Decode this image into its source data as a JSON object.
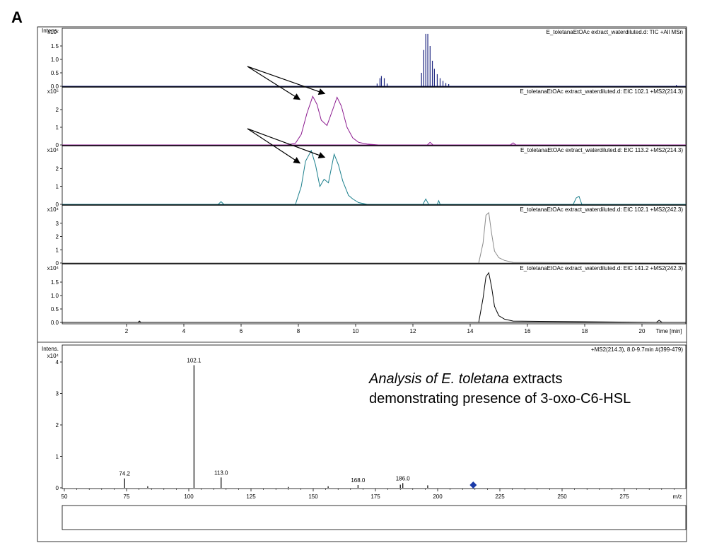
{
  "figure": {
    "panel_label": "A",
    "caption": {
      "species_italic": "Analysis of E. toletana",
      "text1": " extracts",
      "text2": "demonstrating presence of 3-oxo-C6-HSL"
    }
  },
  "colors": {
    "tic": "#1a237e",
    "eic1": "#8b1a8f",
    "eic2": "#1b7f8c",
    "eic3": "#8a8a8a",
    "eic4": "#000000",
    "ms": "#000000",
    "marker": "#1a3aa8"
  },
  "chart_data": [
    {
      "type": "line",
      "title": "E_toletanaEtOAc extract_waterdiluted.d: TIC +All MSn",
      "ylabel": "Intens.",
      "yexp": "x10⁷",
      "xlabel": "Time [min]",
      "xlim": [
        0,
        21.5
      ],
      "ylim": [
        0,
        2.0
      ],
      "yticks": [
        "0.0",
        "0.5",
        "1.0",
        "1.5"
      ],
      "xticks": [
        "2",
        "4",
        "6",
        "8",
        "10",
        "12",
        "14",
        "16",
        "18",
        "20"
      ],
      "series": [
        {
          "x": [
            10.75,
            10.85,
            10.9,
            11.0,
            11.1,
            12.3,
            12.38,
            12.45,
            12.52,
            12.6,
            12.68,
            12.75,
            12.85,
            12.95,
            13.05,
            13.15,
            13.25,
            21.2
          ],
          "y": [
            0.1,
            0.3,
            0.38,
            0.3,
            0.1,
            0.5,
            1.35,
            1.95,
            1.95,
            1.5,
            0.95,
            0.65,
            0.45,
            0.3,
            0.2,
            0.12,
            0.08,
            0.05
          ]
        }
      ]
    },
    {
      "type": "line",
      "title": "E_toletanaEtOAc extract_waterdiluted.d: EIC 102.1 +MS2(214.3)",
      "yexp": "x10⁵",
      "xlim": [
        0,
        21.5
      ],
      "ylim": [
        0,
        3.0
      ],
      "yticks": [
        "0",
        "1",
        "2"
      ],
      "series": [
        {
          "x": [
            0,
            7.6,
            7.9,
            8.1,
            8.3,
            8.5,
            8.65,
            8.8,
            9.0,
            9.2,
            9.35,
            9.5,
            9.7,
            9.9,
            10.1,
            10.4,
            10.8,
            12.5,
            12.6,
            12.7,
            13.5,
            15.4,
            15.5,
            15.6,
            21.5
          ],
          "y": [
            0,
            0,
            0.1,
            0.6,
            1.8,
            2.75,
            2.3,
            1.4,
            1.1,
            2.0,
            2.7,
            2.2,
            1.0,
            0.4,
            0.15,
            0.05,
            0,
            0,
            0.15,
            0,
            0,
            0,
            0.12,
            0,
            0
          ]
        }
      ]
    },
    {
      "type": "line",
      "title": "E_toletanaEtOAc extract_waterdiluted.d: EIC 113.2 +MS2(214.3)",
      "yexp": "x10⁴",
      "xlim": [
        0,
        21.5
      ],
      "ylim": [
        0,
        3.0
      ],
      "yticks": [
        "0",
        "1",
        "2"
      ],
      "series": [
        {
          "x": [
            0,
            5.2,
            5.3,
            5.4,
            7.9,
            8.1,
            8.25,
            8.45,
            8.6,
            8.75,
            8.9,
            9.05,
            9.25,
            9.4,
            9.55,
            9.75,
            9.9,
            10.1,
            10.4,
            12.35,
            12.45,
            12.55,
            12.85,
            12.9,
            12.95,
            17.6,
            17.7,
            17.8,
            17.9,
            21.5
          ],
          "y": [
            0,
            0,
            0.15,
            0,
            0,
            1.0,
            2.4,
            3.0,
            2.2,
            1.0,
            1.4,
            1.2,
            2.8,
            2.2,
            1.3,
            0.5,
            0.3,
            0.1,
            0,
            0,
            0.3,
            0,
            0,
            0.2,
            0,
            0,
            0.35,
            0.45,
            0,
            0
          ]
        }
      ]
    },
    {
      "type": "line",
      "title": "E_toletanaEtOAc extract_waterdiluted.d: EIC 102.1 +MS2(242.3)",
      "yexp": "x10⁴",
      "xlim": [
        0,
        21.5
      ],
      "ylim": [
        0,
        4.0
      ],
      "yticks": [
        "0",
        "1",
        "2",
        "3"
      ],
      "series": [
        {
          "x": [
            0,
            14.3,
            14.45,
            14.55,
            14.65,
            14.75,
            14.85,
            15.0,
            15.2,
            15.5,
            21.5
          ],
          "y": [
            0,
            0,
            1.5,
            3.6,
            3.8,
            2.2,
            0.9,
            0.4,
            0.2,
            0.05,
            0
          ]
        }
      ]
    },
    {
      "type": "line",
      "title": "E_toletanaEtOAc extract_waterdiluted.d: EIC 141.2 +MS2(242.3)",
      "yexp": "x10⁴",
      "xlim": [
        0,
        21.5
      ],
      "ylim": [
        0,
        2.0
      ],
      "yticks": [
        "0.0",
        "0.5",
        "1.0",
        "1.5"
      ],
      "series": [
        {
          "x": [
            0,
            2.4,
            2.45,
            2.5,
            14.3,
            14.45,
            14.55,
            14.65,
            14.75,
            14.85,
            15.0,
            15.2,
            15.5,
            20.5,
            20.6,
            20.7,
            21.5
          ],
          "y": [
            0,
            0,
            0.05,
            0,
            0,
            0.9,
            1.7,
            1.85,
            1.3,
            0.6,
            0.25,
            0.12,
            0.05,
            0,
            0.08,
            0,
            0
          ]
        }
      ]
    },
    {
      "type": "bar",
      "title": "+MS2(214.3), 8.0-9.7min #(399-479)",
      "ylabel": "Intens.",
      "yexp": "x10⁴",
      "xlabel": "m/z",
      "xlim": [
        50,
        300
      ],
      "ylim": [
        0,
        4.3
      ],
      "yticks": [
        "0",
        "1",
        "2",
        "3",
        "4"
      ],
      "xticks": [
        "50",
        "75",
        "100",
        "125",
        "150",
        "175",
        "200",
        "225",
        "250",
        "275"
      ],
      "peaks": [
        {
          "mz": 74.2,
          "intensity": 0.3,
          "label": "74.2"
        },
        {
          "mz": 83.5,
          "intensity": 0.05
        },
        {
          "mz": 102.1,
          "intensity": 3.9,
          "label": "102.1"
        },
        {
          "mz": 113.0,
          "intensity": 0.33,
          "label": "113.0"
        },
        {
          "mz": 140.0,
          "intensity": 0.03
        },
        {
          "mz": 156.0,
          "intensity": 0.05
        },
        {
          "mz": 168.0,
          "intensity": 0.09,
          "label": "168.0"
        },
        {
          "mz": 185.0,
          "intensity": 0.1
        },
        {
          "mz": 186.0,
          "intensity": 0.15,
          "label": "186.0"
        },
        {
          "mz": 196.0,
          "intensity": 0.08
        }
      ],
      "precursor_mz": 214.3
    }
  ]
}
